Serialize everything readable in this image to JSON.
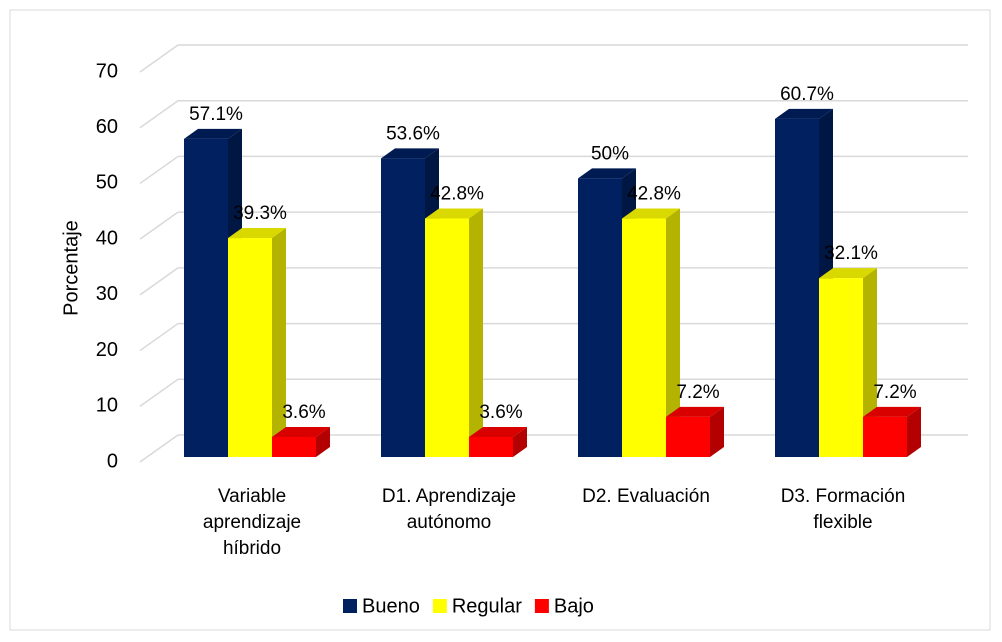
{
  "chart_data": {
    "type": "bar3d",
    "y_label": "Porcentaje",
    "categories": [
      "Variable aprendizaje híbrido",
      "D1. Aprendizaje autónomo",
      "D2. Evaluación",
      "D3. Formación flexible"
    ],
    "series": [
      {
        "name": "Bueno",
        "color": "#002060",
        "values": [
          57.1,
          53.6,
          50,
          60.7
        ],
        "value_labels": [
          "57.1%",
          "53.6%",
          "50%",
          "60.7%"
        ]
      },
      {
        "name": "Regular",
        "color": "#ffff00",
        "values": [
          39.3,
          42.8,
          42.8,
          32.1
        ],
        "value_labels": [
          "39.3%",
          "42.8%",
          "42.8%",
          "32.1%"
        ]
      },
      {
        "name": "Bajo",
        "color": "#ff0000",
        "values": [
          3.6,
          3.6,
          7.2,
          7.2
        ],
        "value_labels": [
          "3.6%",
          "3.6%",
          "7.2%",
          "7.2%"
        ]
      }
    ],
    "ylim": [
      0,
      70
    ],
    "yticks": [
      0,
      10,
      20,
      30,
      40,
      50,
      60,
      70
    ],
    "grid": true,
    "legend": "bottom"
  }
}
